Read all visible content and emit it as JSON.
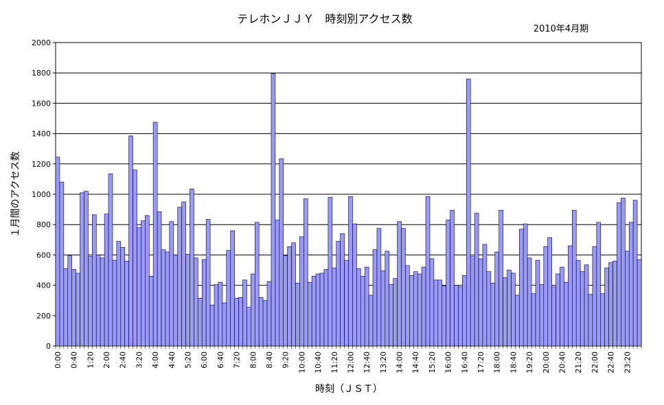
{
  "chart_data": {
    "type": "bar",
    "title": "テレホンＪＪＹ　時刻別アクセス数",
    "subtitle": "2010年4月期",
    "xlabel": "時刻（ＪＳＴ）",
    "ylabel": "１月間のアクセス数",
    "ylim": [
      0,
      2000
    ],
    "yticks": [
      0,
      200,
      400,
      600,
      800,
      1000,
      1200,
      1400,
      1600,
      1800,
      2000
    ],
    "grid": true,
    "legend": "none",
    "bar_color": "#9999ff",
    "interval_minutes": 10,
    "tick_labels": [
      "0:00",
      "0:40",
      "1:20",
      "2:00",
      "2:40",
      "3:20",
      "4:00",
      "4:40",
      "5:20",
      "6:00",
      "6:40",
      "7:20",
      "8:00",
      "8:40",
      "9:20",
      "10:00",
      "10:40",
      "11:20",
      "12:00",
      "12:40",
      "13:20",
      "14:00",
      "14:40",
      "15:20",
      "16:00",
      "16:40",
      "17:20",
      "18:00",
      "18:40",
      "19:20",
      "20:00",
      "20:40",
      "21:20",
      "22:00",
      "22:40",
      "23:20"
    ],
    "values": [
      1245,
      1080,
      510,
      595,
      505,
      480,
      1010,
      1020,
      590,
      865,
      600,
      580,
      870,
      1135,
      565,
      690,
      650,
      560,
      1385,
      1160,
      780,
      825,
      860,
      460,
      1475,
      885,
      635,
      620,
      820,
      600,
      915,
      950,
      605,
      1035,
      580,
      315,
      570,
      835,
      270,
      405,
      420,
      285,
      630,
      760,
      315,
      320,
      435,
      255,
      475,
      815,
      320,
      300,
      425,
      1795,
      830,
      1235,
      595,
      655,
      680,
      415,
      720,
      970,
      420,
      460,
      475,
      480,
      505,
      980,
      515,
      690,
      740,
      565,
      985,
      805,
      510,
      460,
      520,
      335,
      635,
      775,
      495,
      625,
      405,
      445,
      820,
      775,
      530,
      465,
      490,
      475,
      520,
      985,
      575,
      435,
      435,
      395,
      830,
      895,
      400,
      390,
      465,
      1760,
      590,
      875,
      575,
      670,
      490,
      415,
      620,
      895,
      450,
      500,
      480,
      335,
      770,
      805,
      580,
      345,
      565,
      405,
      655,
      715,
      390,
      475,
      520,
      420,
      660,
      895,
      565,
      490,
      535,
      340,
      655,
      815,
      345,
      515,
      550,
      560,
      945,
      975,
      625,
      815,
      960,
      570
    ]
  }
}
